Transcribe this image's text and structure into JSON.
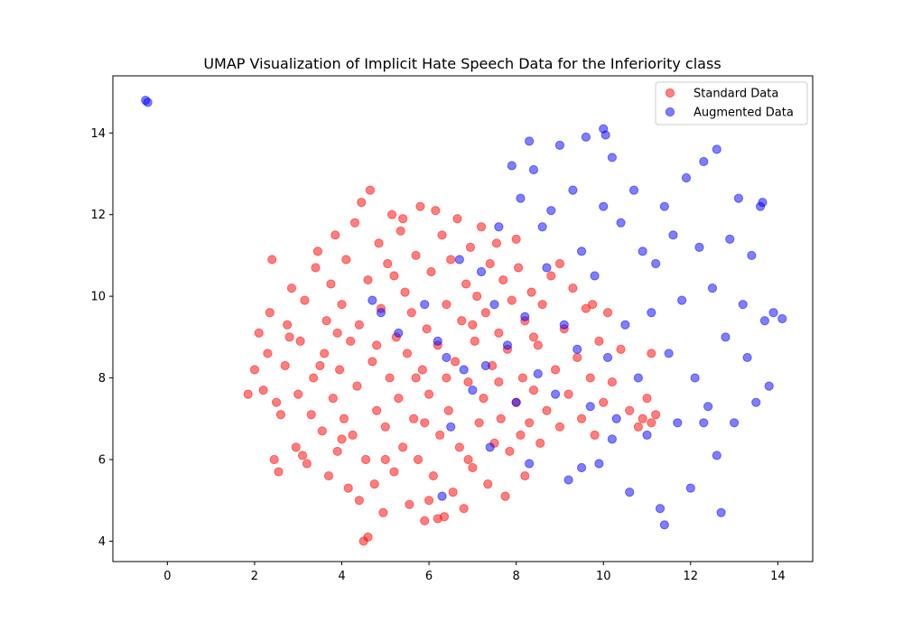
{
  "chart_data": {
    "type": "scatter",
    "title": "UMAP Visualization of Implicit Hate Speech Data for the Inferiority class",
    "xlabel": "",
    "ylabel": "",
    "xlim": [
      -1.25,
      14.8
    ],
    "ylim": [
      3.5,
      15.4
    ],
    "xticks": [
      0,
      2,
      4,
      6,
      8,
      10,
      12,
      14
    ],
    "yticks": [
      4,
      6,
      8,
      10,
      12,
      14
    ],
    "grid": false,
    "legend_position": "top-right",
    "point_alpha": 0.5,
    "series": [
      {
        "name": "Standard Data",
        "color": "#ff0000",
        "points": [
          [
            1.85,
            7.6
          ],
          [
            2.0,
            8.2
          ],
          [
            2.1,
            9.1
          ],
          [
            2.2,
            7.7
          ],
          [
            2.3,
            8.6
          ],
          [
            2.35,
            9.6
          ],
          [
            2.4,
            10.9
          ],
          [
            2.45,
            6.0
          ],
          [
            2.55,
            5.7
          ],
          [
            2.6,
            7.1
          ],
          [
            2.7,
            8.3
          ],
          [
            2.75,
            9.3
          ],
          [
            2.85,
            10.2
          ],
          [
            2.95,
            6.3
          ],
          [
            3.0,
            7.6
          ],
          [
            3.05,
            8.9
          ],
          [
            3.15,
            9.9
          ],
          [
            3.2,
            5.9
          ],
          [
            3.3,
            7.1
          ],
          [
            3.35,
            8.0
          ],
          [
            3.4,
            10.7
          ],
          [
            3.45,
            11.1
          ],
          [
            3.55,
            6.7
          ],
          [
            3.6,
            8.6
          ],
          [
            3.65,
            9.4
          ],
          [
            3.7,
            5.6
          ],
          [
            3.75,
            10.3
          ],
          [
            3.8,
            7.5
          ],
          [
            3.85,
            11.5
          ],
          [
            3.9,
            6.2
          ],
          [
            3.95,
            8.2
          ],
          [
            4.0,
            9.8
          ],
          [
            4.05,
            7.0
          ],
          [
            4.1,
            10.9
          ],
          [
            4.15,
            5.3
          ],
          [
            4.2,
            8.9
          ],
          [
            4.25,
            6.6
          ],
          [
            4.3,
            11.8
          ],
          [
            4.35,
            7.8
          ],
          [
            4.4,
            9.3
          ],
          [
            4.45,
            12.3
          ],
          [
            4.5,
            4.0
          ],
          [
            4.55,
            6.0
          ],
          [
            4.6,
            10.4
          ],
          [
            4.65,
            12.6
          ],
          [
            4.7,
            8.4
          ],
          [
            4.75,
            5.4
          ],
          [
            4.8,
            7.2
          ],
          [
            4.85,
            11.3
          ],
          [
            4.9,
            9.7
          ],
          [
            4.95,
            4.7
          ],
          [
            5.0,
            6.8
          ],
          [
            5.05,
            10.8
          ],
          [
            5.1,
            8.0
          ],
          [
            5.15,
            12.0
          ],
          [
            5.2,
            5.7
          ],
          [
            5.25,
            9.0
          ],
          [
            5.3,
            7.5
          ],
          [
            5.35,
            11.6
          ],
          [
            5.4,
            6.3
          ],
          [
            5.45,
            10.1
          ],
          [
            5.5,
            8.6
          ],
          [
            5.55,
            4.9
          ],
          [
            5.6,
            9.6
          ],
          [
            5.65,
            7.0
          ],
          [
            5.7,
            11.0
          ],
          [
            5.75,
            6.0
          ],
          [
            5.8,
            12.2
          ],
          [
            5.85,
            8.2
          ],
          [
            5.9,
            4.5
          ],
          [
            5.95,
            9.2
          ],
          [
            6.0,
            7.6
          ],
          [
            6.05,
            10.6
          ],
          [
            6.1,
            5.6
          ],
          [
            6.15,
            12.1
          ],
          [
            6.2,
            8.8
          ],
          [
            6.25,
            6.6
          ],
          [
            6.3,
            11.5
          ],
          [
            6.35,
            4.6
          ],
          [
            6.4,
            9.8
          ],
          [
            6.45,
            7.2
          ],
          [
            6.5,
            10.9
          ],
          [
            6.55,
            5.2
          ],
          [
            6.6,
            8.4
          ],
          [
            6.65,
            11.9
          ],
          [
            6.7,
            6.3
          ],
          [
            6.75,
            9.4
          ],
          [
            6.8,
            4.8
          ],
          [
            6.85,
            10.3
          ],
          [
            6.9,
            7.9
          ],
          [
            6.95,
            11.2
          ],
          [
            7.0,
            5.8
          ],
          [
            7.05,
            8.9
          ],
          [
            7.1,
            10.0
          ],
          [
            7.15,
            6.9
          ],
          [
            7.2,
            11.7
          ],
          [
            7.25,
            7.5
          ],
          [
            7.3,
            9.6
          ],
          [
            7.35,
            5.4
          ],
          [
            7.4,
            10.8
          ],
          [
            7.45,
            8.3
          ],
          [
            7.5,
            6.4
          ],
          [
            7.55,
            11.3
          ],
          [
            7.6,
            9.1
          ],
          [
            7.65,
            7.0
          ],
          [
            7.7,
            10.4
          ],
          [
            7.75,
            5.1
          ],
          [
            7.8,
            8.7
          ],
          [
            7.85,
            6.2
          ],
          [
            7.9,
            9.9
          ],
          [
            8.0,
            7.4
          ],
          [
            8.05,
            10.7
          ],
          [
            8.1,
            6.6
          ],
          [
            8.15,
            8.0
          ],
          [
            8.2,
            9.4
          ],
          [
            8.3,
            6.9
          ],
          [
            8.35,
            10.1
          ],
          [
            8.4,
            7.7
          ],
          [
            8.5,
            8.8
          ],
          [
            8.55,
            6.4
          ],
          [
            8.6,
            9.8
          ],
          [
            8.7,
            7.2
          ],
          [
            8.8,
            10.5
          ],
          [
            8.9,
            8.2
          ],
          [
            9.0,
            6.8
          ],
          [
            9.1,
            9.2
          ],
          [
            9.2,
            7.6
          ],
          [
            9.3,
            10.2
          ],
          [
            9.4,
            8.5
          ],
          [
            9.5,
            7.0
          ],
          [
            9.6,
            9.7
          ],
          [
            9.7,
            8.0
          ],
          [
            9.8,
            6.6
          ],
          [
            9.9,
            8.9
          ],
          [
            10.0,
            7.4
          ],
          [
            10.1,
            9.6
          ],
          [
            10.2,
            7.9
          ],
          [
            10.4,
            8.7
          ],
          [
            10.6,
            7.2
          ],
          [
            10.8,
            6.8
          ],
          [
            10.9,
            7.0
          ],
          [
            11.0,
            7.5
          ],
          [
            11.1,
            6.9
          ],
          [
            11.2,
            7.1
          ],
          [
            11.1,
            8.6
          ],
          [
            4.6,
            4.1
          ],
          [
            9.75,
            9.8
          ],
          [
            6.2,
            4.55
          ],
          [
            8.2,
            5.6
          ],
          [
            5.4,
            11.9
          ],
          [
            3.1,
            6.1
          ],
          [
            2.5,
            7.4
          ],
          [
            3.9,
            9.1
          ],
          [
            5.0,
            6.0
          ],
          [
            6.0,
            5.0
          ],
          [
            7.0,
            9.3
          ],
          [
            8.0,
            11.4
          ],
          [
            9.0,
            10.8
          ],
          [
            4.4,
            5.0
          ],
          [
            5.7,
            8.0
          ],
          [
            2.8,
            9.0
          ],
          [
            3.5,
            8.3
          ],
          [
            4.0,
            6.5
          ],
          [
            4.8,
            8.8
          ],
          [
            5.2,
            10.5
          ],
          [
            5.9,
            6.9
          ],
          [
            6.4,
            8.0
          ],
          [
            6.9,
            6.0
          ],
          [
            7.6,
            7.9
          ],
          [
            8.4,
            9.0
          ]
        ]
      },
      {
        "name": "Augmented Data",
        "color": "#0000ff",
        "points": [
          [
            -0.5,
            14.8
          ],
          [
            -0.45,
            14.75
          ],
          [
            4.7,
            9.9
          ],
          [
            4.9,
            9.6
          ],
          [
            5.3,
            9.1
          ],
          [
            5.9,
            9.8
          ],
          [
            6.2,
            8.9
          ],
          [
            6.4,
            8.5
          ],
          [
            6.5,
            6.8
          ],
          [
            6.3,
            5.1
          ],
          [
            6.7,
            10.9
          ],
          [
            6.8,
            8.2
          ],
          [
            7.0,
            7.7
          ],
          [
            7.2,
            10.6
          ],
          [
            7.3,
            8.3
          ],
          [
            7.4,
            6.3
          ],
          [
            7.5,
            9.8
          ],
          [
            7.6,
            11.7
          ],
          [
            7.8,
            8.8
          ],
          [
            7.9,
            13.2
          ],
          [
            8.0,
            7.4
          ],
          [
            8.1,
            12.4
          ],
          [
            8.2,
            9.5
          ],
          [
            8.3,
            5.9
          ],
          [
            8.4,
            13.1
          ],
          [
            8.5,
            8.1
          ],
          [
            8.6,
            11.7
          ],
          [
            8.7,
            10.7
          ],
          [
            8.8,
            12.1
          ],
          [
            8.9,
            7.6
          ],
          [
            9.0,
            13.7
          ],
          [
            9.1,
            9.3
          ],
          [
            9.2,
            5.5
          ],
          [
            9.3,
            12.6
          ],
          [
            9.4,
            8.7
          ],
          [
            9.5,
            11.1
          ],
          [
            9.6,
            13.9
          ],
          [
            9.7,
            7.3
          ],
          [
            9.8,
            10.5
          ],
          [
            9.9,
            5.9
          ],
          [
            10.0,
            12.2
          ],
          [
            10.1,
            8.5
          ],
          [
            10.2,
            13.4
          ],
          [
            10.3,
            7.0
          ],
          [
            10.4,
            11.8
          ],
          [
            10.5,
            9.3
          ],
          [
            10.6,
            5.2
          ],
          [
            10.7,
            12.6
          ],
          [
            10.8,
            8.0
          ],
          [
            10.9,
            11.1
          ],
          [
            11.0,
            6.6
          ],
          [
            11.1,
            9.6
          ],
          [
            11.2,
            10.8
          ],
          [
            11.3,
            4.8
          ],
          [
            11.4,
            12.2
          ],
          [
            11.5,
            8.6
          ],
          [
            11.6,
            11.5
          ],
          [
            11.7,
            6.9
          ],
          [
            11.8,
            9.9
          ],
          [
            11.9,
            12.9
          ],
          [
            12.0,
            5.3
          ],
          [
            12.1,
            8.0
          ],
          [
            12.2,
            11.2
          ],
          [
            12.3,
            13.3
          ],
          [
            12.4,
            7.3
          ],
          [
            12.5,
            10.2
          ],
          [
            12.6,
            13.6
          ],
          [
            12.7,
            4.7
          ],
          [
            12.8,
            9.0
          ],
          [
            12.9,
            11.4
          ],
          [
            13.0,
            6.9
          ],
          [
            13.1,
            12.4
          ],
          [
            13.2,
            9.8
          ],
          [
            13.3,
            8.5
          ],
          [
            13.4,
            11.0
          ],
          [
            13.5,
            7.4
          ],
          [
            13.6,
            12.2
          ],
          [
            13.7,
            9.4
          ],
          [
            13.8,
            7.8
          ],
          [
            13.9,
            9.6
          ],
          [
            14.1,
            9.45
          ],
          [
            13.65,
            12.3
          ],
          [
            10.0,
            14.1
          ],
          [
            10.05,
            13.95
          ],
          [
            11.4,
            4.4
          ],
          [
            9.5,
            5.8
          ],
          [
            10.2,
            6.5
          ],
          [
            12.6,
            6.1
          ],
          [
            12.3,
            6.9
          ],
          [
            8.3,
            13.8
          ]
        ]
      }
    ]
  }
}
